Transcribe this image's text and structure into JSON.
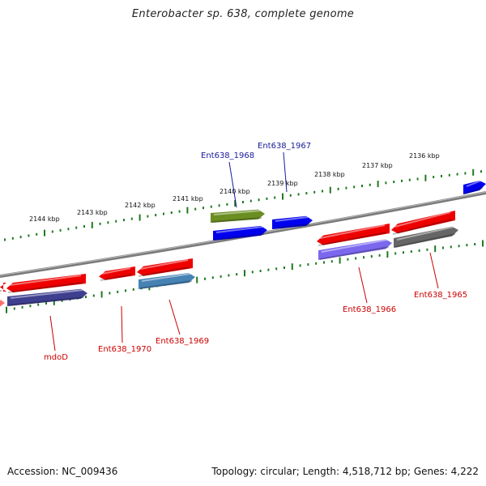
{
  "title": "Enterobacter sp. 638, complete genome",
  "footer": {
    "accession": "Accession: NC_009436",
    "topology": "Topology: circular; Length: 4,518,712 bp; Genes: 4,222"
  },
  "colors": {
    "backbone": "#7a7a7a",
    "ticks": "#1f7a1f",
    "label_red": "#cc0000",
    "label_blue": "#1a1a9c"
  },
  "scale_labels": [
    {
      "text": "2136 kbp",
      "position_kbp": 2136
    },
    {
      "text": "2137 kbp",
      "position_kbp": 2137
    },
    {
      "text": "2138 kbp",
      "position_kbp": 2138
    },
    {
      "text": "2139 kbp",
      "position_kbp": 2139
    },
    {
      "text": "2140 kbp",
      "position_kbp": 2140
    },
    {
      "text": "2141 kbp",
      "position_kbp": 2141
    },
    {
      "text": "2142 kbp",
      "position_kbp": 2142
    },
    {
      "text": "2143 kbp",
      "position_kbp": 2143
    },
    {
      "text": "2144 kbp",
      "position_kbp": 2144
    }
  ],
  "gene_labels": [
    {
      "name": "Ent638_1968",
      "color": "blue"
    },
    {
      "name": "Ent638_1967",
      "color": "blue"
    },
    {
      "name": "Ent638_1966",
      "color": "red"
    },
    {
      "name": "Ent638_1965",
      "color": "red"
    },
    {
      "name": "Ent638_1970",
      "color": "red"
    },
    {
      "name": "Ent638_1969",
      "color": "red"
    },
    {
      "name": "mdoD",
      "color": "red"
    }
  ]
}
